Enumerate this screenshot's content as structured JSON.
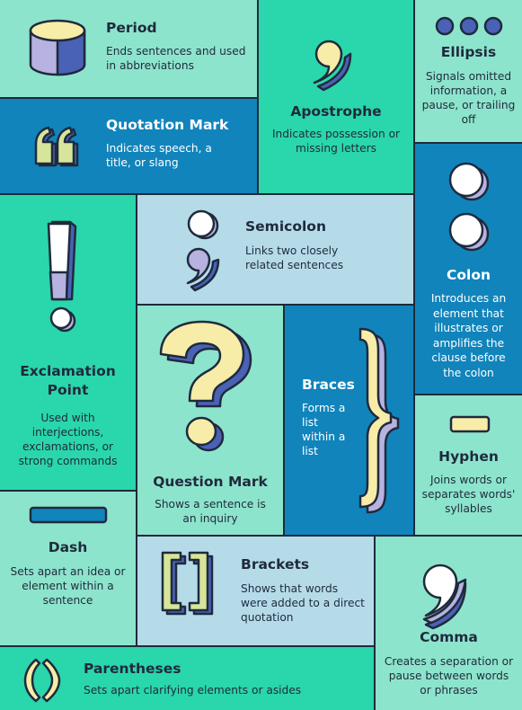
{
  "colors": {
    "mint": "#8de4cc",
    "green": "#2ad6ab",
    "blue": "#1184bc",
    "lightblue": "#b5dbe9",
    "ink": "#1f2a3d",
    "cream": "#f7eca8",
    "lavender": "#b7b2e0",
    "indigo": "#4a62b5",
    "grid": "#1e2a3a"
  },
  "items": {
    "period": {
      "title": "Period",
      "desc": "Ends sentences and used in abbreviations"
    },
    "apostrophe": {
      "title": "Apostrophe",
      "desc": "Indicates possession or missing letters"
    },
    "ellipsis": {
      "title": "Ellipsis",
      "desc": "Signals omitted information, a pause, or trailing off"
    },
    "quotation": {
      "title": "Quotation Mark",
      "desc": "Indicates speech, a title, or slang"
    },
    "exclamation": {
      "title": "Exclamation Point",
      "desc": "Used with interjections, exclamations, or strong commands"
    },
    "semicolon": {
      "title": "Semicolon",
      "desc": "Links two closely related sentences"
    },
    "colon": {
      "title": "Colon",
      "desc": "Introduces an element that illustrates or amplifies the clause before the colon"
    },
    "question": {
      "title": "Question Mark",
      "desc": "Shows a sentence is an inquiry"
    },
    "braces": {
      "title": "Braces",
      "desc": "Forms a list within a list"
    },
    "hyphen": {
      "title": "Hyphen",
      "desc": "Joins words or separates words' syllables"
    },
    "dash": {
      "title": "Dash",
      "desc": "Sets apart an idea or element within a sentence"
    },
    "brackets": {
      "title": "Brackets",
      "desc": "Shows that words were added to a direct quotation"
    },
    "comma": {
      "title": "Comma",
      "desc": "Creates a separation or pause between words or phrases"
    },
    "parentheses": {
      "title": "Parentheses",
      "desc": "Sets apart clarifying elements or asides"
    }
  }
}
